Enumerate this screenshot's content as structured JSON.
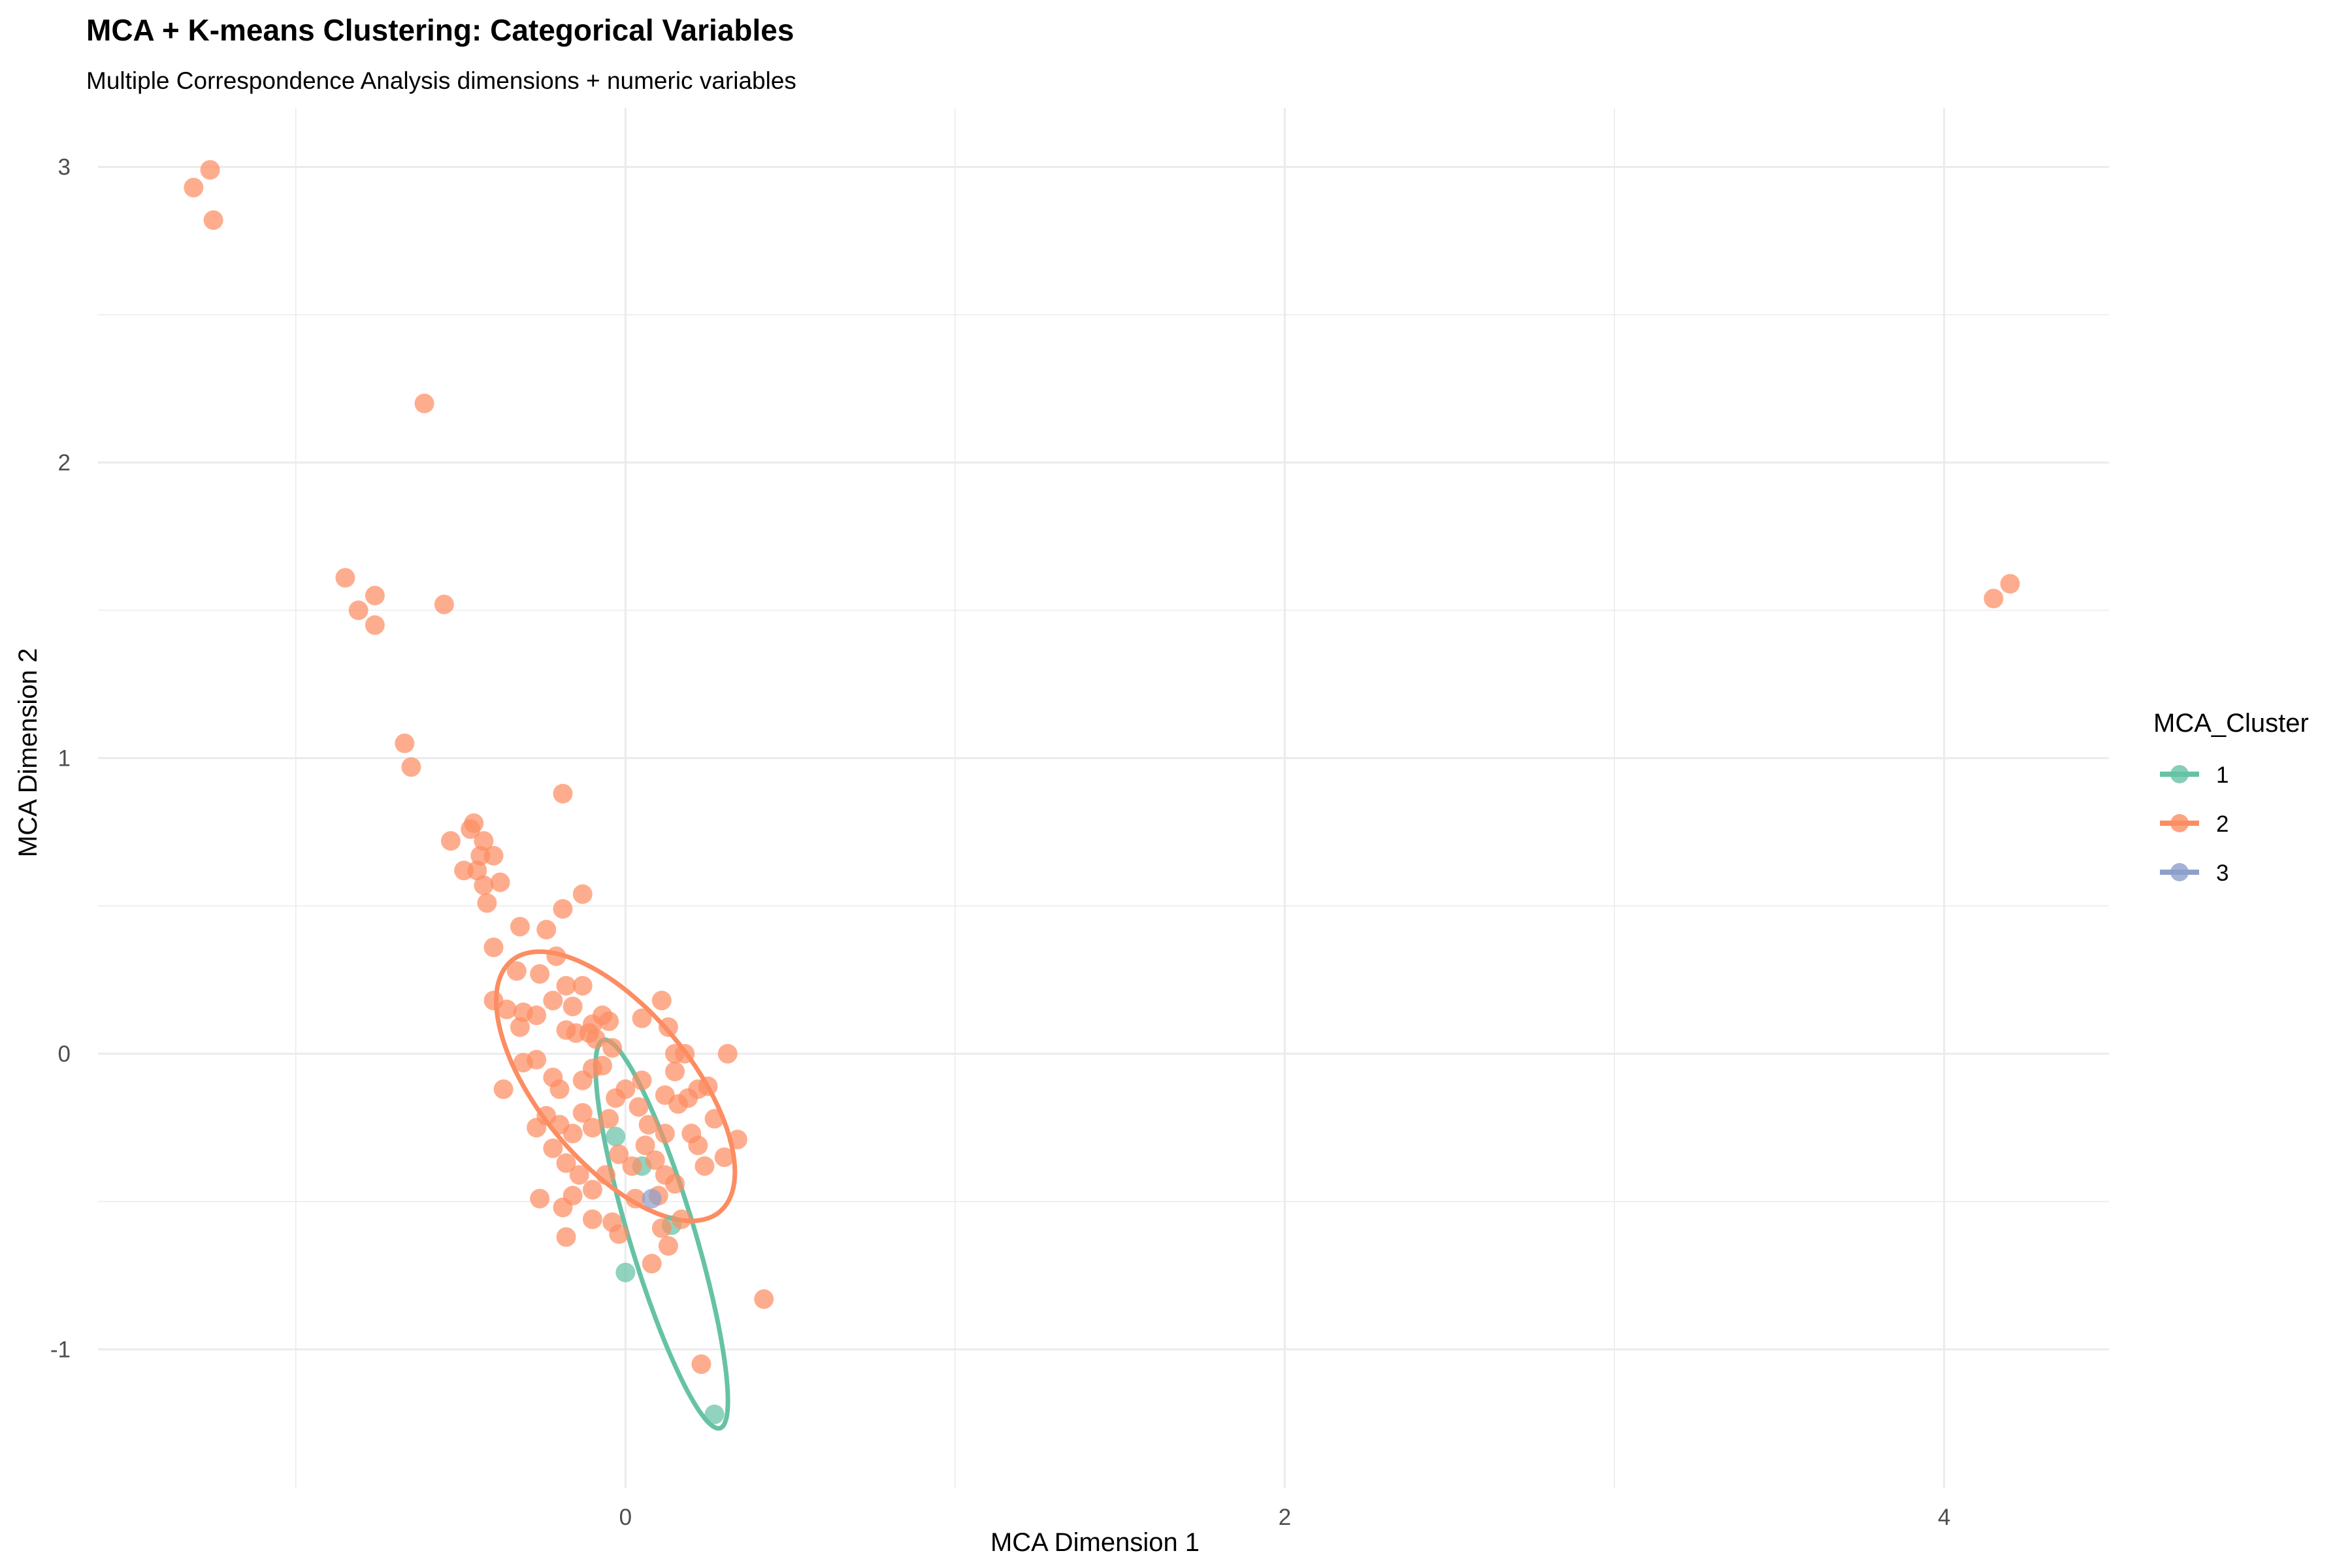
{
  "chart_data": {
    "type": "scatter",
    "title": "MCA + K-means Clustering: Categorical Variables",
    "subtitle": "Multiple Correspondence Analysis dimensions + numeric variables",
    "xlabel": "MCA Dimension 1",
    "ylabel": "MCA Dimension 2",
    "xlim": [
      -1.6,
      4.5
    ],
    "ylim": [
      -1.47,
      3.2
    ],
    "x_ticks": [
      0,
      2,
      4
    ],
    "y_ticks": [
      -1,
      0,
      1,
      2,
      3
    ],
    "grid": true,
    "legend": {
      "title": "MCA_Cluster",
      "position": "right",
      "entries": [
        "1",
        "2",
        "3"
      ]
    },
    "colors": {
      "1": "#66c2a5",
      "2": "#fc8d62",
      "3": "#8da0cb"
    },
    "series": [
      {
        "name": "1",
        "points": [
          [
            0.0,
            -0.74
          ],
          [
            0.27,
            -1.22
          ],
          [
            0.14,
            -0.58
          ],
          [
            -0.03,
            -0.28
          ],
          [
            0.05,
            -0.38
          ]
        ],
        "ellipse": {
          "center": [
            0.11,
            -0.61
          ],
          "semi_axis_major": 0.68,
          "semi_axis_minor": 0.1,
          "angle_deg": -75
        }
      },
      {
        "name": "2",
        "points": [
          [
            -1.31,
            2.93
          ],
          [
            -1.26,
            2.99
          ],
          [
            -1.25,
            2.82
          ],
          [
            -0.61,
            2.2
          ],
          [
            -0.85,
            1.61
          ],
          [
            -0.81,
            1.5
          ],
          [
            -0.76,
            1.55
          ],
          [
            -0.76,
            1.45
          ],
          [
            -0.55,
            1.52
          ],
          [
            -0.67,
            1.05
          ],
          [
            -0.65,
            0.97
          ],
          [
            -0.19,
            0.88
          ],
          [
            -0.53,
            0.72
          ],
          [
            -0.47,
            0.76
          ],
          [
            -0.46,
            0.78
          ],
          [
            -0.43,
            0.72
          ],
          [
            -0.44,
            0.67
          ],
          [
            -0.4,
            0.67
          ],
          [
            -0.49,
            0.62
          ],
          [
            -0.45,
            0.62
          ],
          [
            -0.43,
            0.57
          ],
          [
            -0.38,
            0.58
          ],
          [
            -0.42,
            0.51
          ],
          [
            -0.13,
            0.54
          ],
          [
            -0.19,
            0.49
          ],
          [
            -0.32,
            0.43
          ],
          [
            -0.24,
            0.42
          ],
          [
            -0.4,
            0.36
          ],
          [
            -0.33,
            0.28
          ],
          [
            -0.26,
            0.27
          ],
          [
            -0.21,
            0.33
          ],
          [
            -0.13,
            0.23
          ],
          [
            -0.18,
            0.23
          ],
          [
            -0.4,
            0.18
          ],
          [
            -0.36,
            0.15
          ],
          [
            -0.31,
            0.14
          ],
          [
            -0.27,
            0.13
          ],
          [
            -0.22,
            0.18
          ],
          [
            -0.16,
            0.16
          ],
          [
            -0.32,
            0.09
          ],
          [
            -0.18,
            0.08
          ],
          [
            -0.1,
            0.1
          ],
          [
            -0.07,
            0.13
          ],
          [
            -0.05,
            0.11
          ],
          [
            0.05,
            0.12
          ],
          [
            0.11,
            0.18
          ],
          [
            -0.15,
            0.07
          ],
          [
            -0.09,
            0.05
          ],
          [
            -0.11,
            0.07
          ],
          [
            0.13,
            0.09
          ],
          [
            -0.31,
            -0.03
          ],
          [
            -0.27,
            -0.02
          ],
          [
            -0.22,
            -0.08
          ],
          [
            -0.04,
            0.02
          ],
          [
            0.15,
            0.0
          ],
          [
            0.18,
            0.0
          ],
          [
            0.31,
            0.0
          ],
          [
            -0.37,
            -0.12
          ],
          [
            -0.2,
            -0.12
          ],
          [
            -0.13,
            -0.09
          ],
          [
            -0.1,
            -0.05
          ],
          [
            -0.07,
            -0.04
          ],
          [
            0.05,
            -0.09
          ],
          [
            0.15,
            -0.06
          ],
          [
            0.19,
            -0.15
          ],
          [
            0.22,
            -0.12
          ],
          [
            0.25,
            -0.11
          ],
          [
            0.12,
            -0.14
          ],
          [
            0.16,
            -0.17
          ],
          [
            -0.27,
            -0.25
          ],
          [
            -0.24,
            -0.21
          ],
          [
            -0.2,
            -0.24
          ],
          [
            -0.16,
            -0.27
          ],
          [
            -0.13,
            -0.2
          ],
          [
            -0.1,
            -0.25
          ],
          [
            -0.05,
            -0.22
          ],
          [
            -0.03,
            -0.15
          ],
          [
            0.0,
            -0.12
          ],
          [
            0.04,
            -0.18
          ],
          [
            0.07,
            -0.24
          ],
          [
            0.12,
            -0.27
          ],
          [
            0.2,
            -0.27
          ],
          [
            0.27,
            -0.22
          ],
          [
            0.34,
            -0.29
          ],
          [
            0.22,
            -0.31
          ],
          [
            0.3,
            -0.35
          ],
          [
            0.24,
            -0.38
          ],
          [
            -0.22,
            -0.32
          ],
          [
            -0.18,
            -0.37
          ],
          [
            -0.14,
            -0.41
          ],
          [
            -0.1,
            -0.46
          ],
          [
            -0.06,
            -0.41
          ],
          [
            -0.02,
            -0.34
          ],
          [
            0.02,
            -0.38
          ],
          [
            0.06,
            -0.31
          ],
          [
            0.09,
            -0.36
          ],
          [
            0.12,
            -0.41
          ],
          [
            0.15,
            -0.44
          ],
          [
            -0.26,
            -0.49
          ],
          [
            -0.19,
            -0.52
          ],
          [
            -0.16,
            -0.48
          ],
          [
            -0.1,
            -0.56
          ],
          [
            -0.04,
            -0.57
          ],
          [
            0.03,
            -0.49
          ],
          [
            0.1,
            -0.48
          ],
          [
            0.17,
            -0.56
          ],
          [
            0.11,
            -0.59
          ],
          [
            -0.02,
            -0.61
          ],
          [
            -0.18,
            -0.62
          ],
          [
            0.08,
            -0.71
          ],
          [
            0.13,
            -0.65
          ],
          [
            0.42,
            -0.83
          ],
          [
            0.23,
            -1.05
          ],
          [
            4.15,
            1.54
          ],
          [
            4.2,
            1.59
          ]
        ],
        "ellipse": {
          "center": [
            -0.03,
            -0.11
          ],
          "semi_axis_major": 0.53,
          "semi_axis_minor": 0.24,
          "angle_deg": -55
        }
      },
      {
        "name": "3",
        "points": [
          [
            0.08,
            -0.49
          ]
        ]
      }
    ]
  }
}
